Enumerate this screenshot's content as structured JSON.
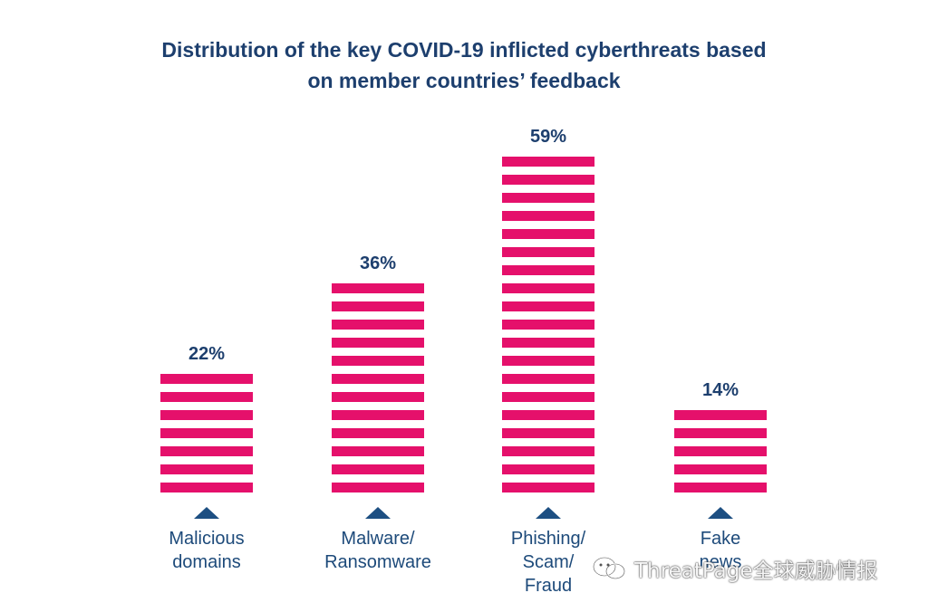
{
  "title": {
    "line1": "Distribution of the key COVID-19 inflicted cyberthreats based",
    "line2": "on member countries’ feedback"
  },
  "chart_data": {
    "type": "bar",
    "categories": [
      "Malicious domains",
      "Malware/ Ransomware",
      "Phishing/ Scam/ Fraud",
      "Fake news"
    ],
    "category_lines": [
      [
        "Malicious",
        "domains"
      ],
      [
        "Malware/",
        "Ransomware"
      ],
      [
        "Phishing/",
        "Scam/",
        "Fraud"
      ],
      [
        "Fake",
        "news"
      ]
    ],
    "values": [
      22,
      36,
      59,
      14
    ],
    "data_labels": [
      "22%",
      "36%",
      "59%",
      "14%"
    ],
    "unit": "%",
    "ylim": [
      0,
      59
    ],
    "grid": false,
    "legend": "none",
    "bar_style": "horizontal stripes",
    "colors": {
      "bar": "#e5106b",
      "label": "#1d3f6e",
      "marker": "#1d4f82",
      "category_text": "#1d4a7a"
    }
  },
  "watermark": {
    "text": "ThreatPage全球威胁情报",
    "icon": "wechat-icon"
  }
}
